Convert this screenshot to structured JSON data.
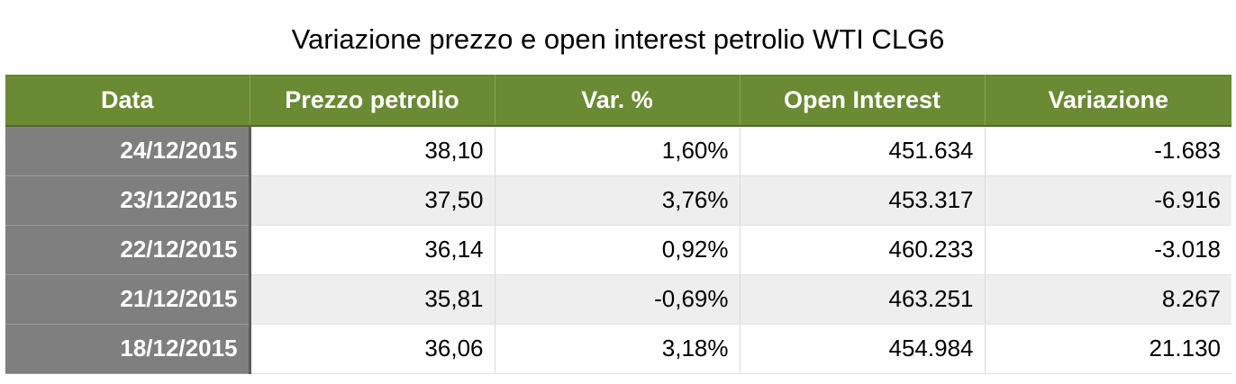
{
  "title": "Variazione prezzo e open interest petrolio WTI CLG6",
  "table": {
    "headers": [
      "Data",
      "Prezzo petrolio",
      "Var. %",
      "Open Interest",
      "Variazione"
    ],
    "rows": [
      [
        "24/12/2015",
        "38,10",
        "1,60%",
        "451.634",
        "-1.683"
      ],
      [
        "23/12/2015",
        "37,50",
        "3,76%",
        "453.317",
        "-6.916"
      ],
      [
        "22/12/2015",
        "36,14",
        "0,92%",
        "460.233",
        "-3.018"
      ],
      [
        "21/12/2015",
        "35,81",
        "-0,69%",
        "463.251",
        "8.267"
      ],
      [
        "18/12/2015",
        "36,06",
        "3,18%",
        "454.984",
        "21.130"
      ]
    ]
  },
  "colors": {
    "header_background": "#6a8a33",
    "header_text": "#ffffff",
    "date_column_background": "#7f7f7f",
    "alternate_row_background": "#eeeeee"
  }
}
